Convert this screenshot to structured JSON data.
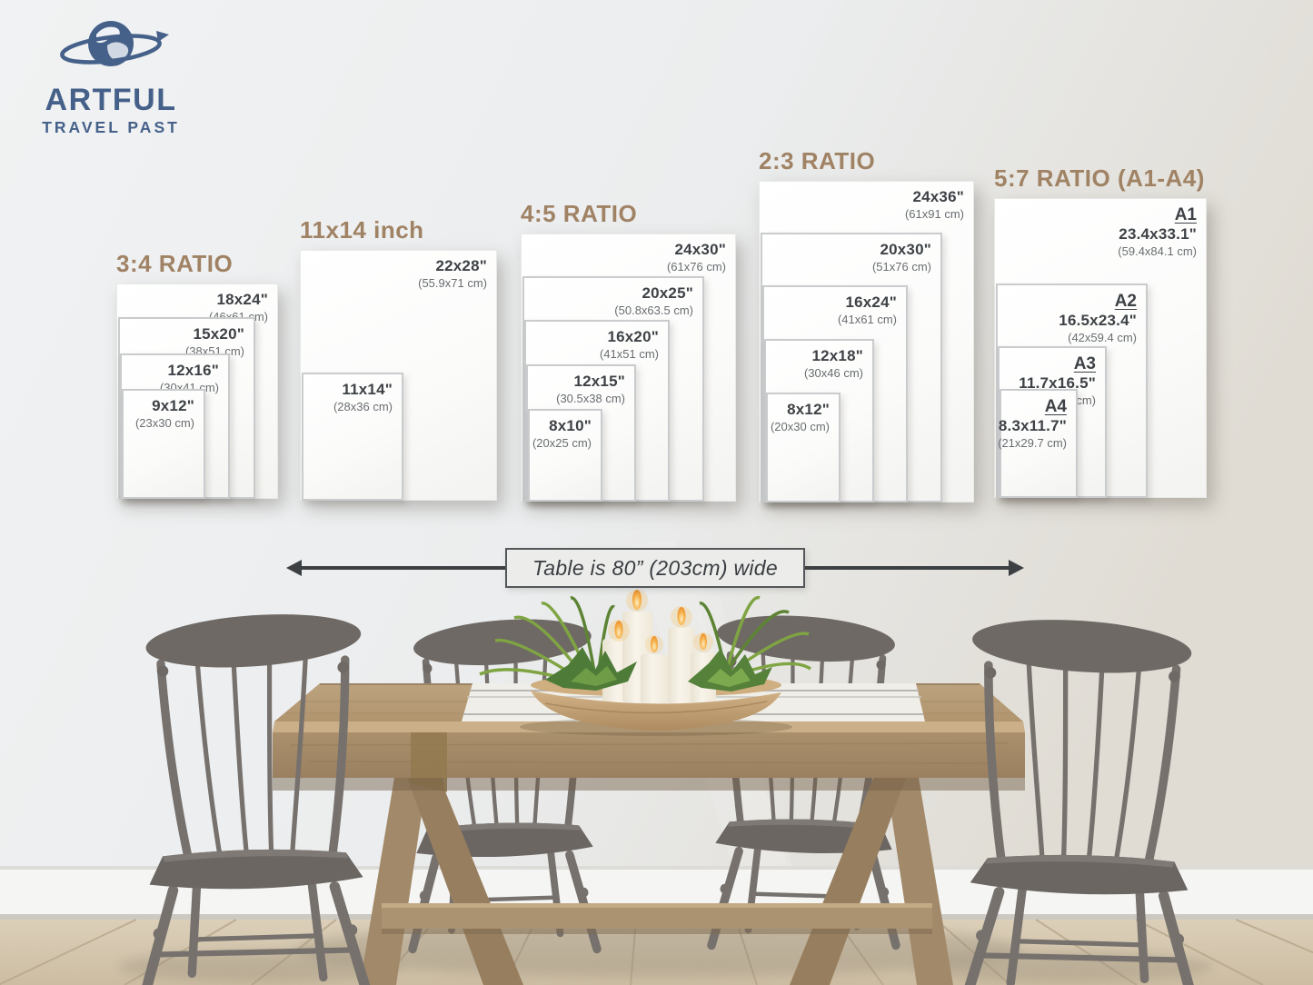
{
  "brand": {
    "line1": "ARTFUL",
    "line2": "TRAVEL PAST",
    "color": "#45618a"
  },
  "size_chart": {
    "accent_color": "#a08264",
    "groups": [
      {
        "title": "3:4 RATIO",
        "sizes": [
          {
            "in_label": "18x24\"",
            "cm_label": "(46x61 cm)",
            "w_in": 18,
            "h_in": 24
          },
          {
            "in_label": "15x20\"",
            "cm_label": "(38x51 cm)",
            "w_in": 15,
            "h_in": 20
          },
          {
            "in_label": "12x16\"",
            "cm_label": "(30x41 cm)",
            "w_in": 12,
            "h_in": 16
          },
          {
            "in_label": "9x12\"",
            "cm_label": "(23x30 cm)",
            "w_in": 9,
            "h_in": 12
          }
        ]
      },
      {
        "title": "11x14 inch",
        "sizes": [
          {
            "in_label": "22x28\"",
            "cm_label": "(55.9x71 cm)",
            "w_in": 22,
            "h_in": 28
          },
          {
            "in_label": "11x14\"",
            "cm_label": "(28x36 cm)",
            "w_in": 11,
            "h_in": 14
          }
        ]
      },
      {
        "title": "4:5 RATIO",
        "sizes": [
          {
            "in_label": "24x30\"",
            "cm_label": "(61x76 cm)",
            "w_in": 24,
            "h_in": 30
          },
          {
            "in_label": "20x25\"",
            "cm_label": "(50.8x63.5 cm)",
            "w_in": 20,
            "h_in": 25
          },
          {
            "in_label": "16x20\"",
            "cm_label": "(41x51 cm)",
            "w_in": 16,
            "h_in": 20
          },
          {
            "in_label": "12x15\"",
            "cm_label": "(30.5x38 cm)",
            "w_in": 12,
            "h_in": 15
          },
          {
            "in_label": "8x10\"",
            "cm_label": "(20x25 cm)",
            "w_in": 8,
            "h_in": 10
          }
        ]
      },
      {
        "title": "2:3 RATIO",
        "sizes": [
          {
            "in_label": "24x36\"",
            "cm_label": "(61x91 cm)",
            "w_in": 24,
            "h_in": 36
          },
          {
            "in_label": "20x30\"",
            "cm_label": "(51x76 cm)",
            "w_in": 20,
            "h_in": 30
          },
          {
            "in_label": "16x24\"",
            "cm_label": "(41x61 cm)",
            "w_in": 16,
            "h_in": 24
          },
          {
            "in_label": "12x18\"",
            "cm_label": "(30x46 cm)",
            "w_in": 12,
            "h_in": 18
          },
          {
            "in_label": "8x12\"",
            "cm_label": "(20x30 cm)",
            "w_in": 8,
            "h_in": 12
          }
        ]
      },
      {
        "title": "5:7 RATIO (A1-A4)",
        "sizes": [
          {
            "tag": "A1",
            "in_label": "23.4x33.1\"",
            "cm_label": "(59.4x84.1 cm)",
            "w_in": 23.4,
            "h_in": 33.1
          },
          {
            "tag": "A2",
            "in_label": "16.5x23.4\"",
            "cm_label": "(42x59.4 cm)",
            "w_in": 16.5,
            "h_in": 23.4
          },
          {
            "tag": "A3",
            "in_label": "11.7x16.5\"",
            "cm_label": "(29.7x42 cm)",
            "w_in": 11.7,
            "h_in": 16.5
          },
          {
            "tag": "A4",
            "in_label": "8.3x11.7\"",
            "cm_label": "(21x29.7 cm)",
            "w_in": 8.3,
            "h_in": 11.7
          }
        ]
      }
    ]
  },
  "measure": {
    "label": "Table is 80” (203cm) wide"
  }
}
